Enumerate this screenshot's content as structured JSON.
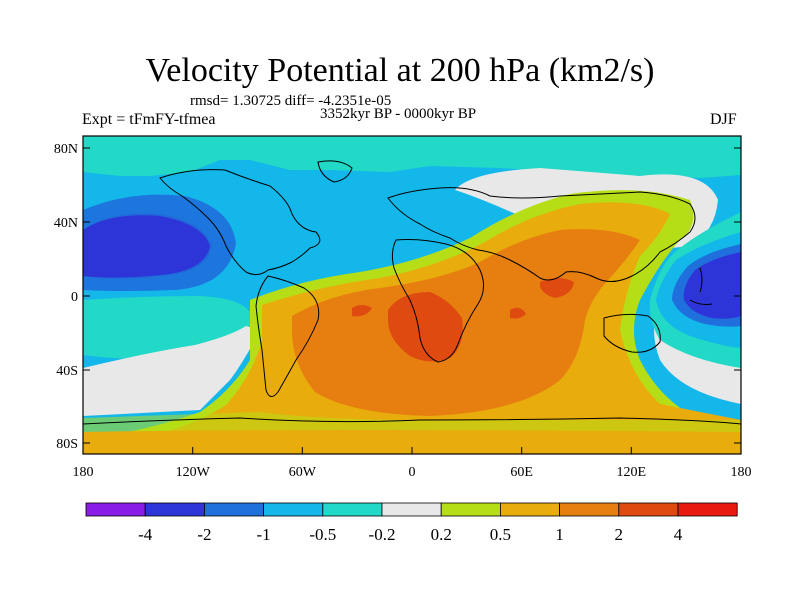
{
  "title": "Velocity Potential at 200 hPa (km2/s)",
  "stats": "rmsd= 1.30725 diff= -4.2351e-05",
  "period": "3352kyr BP - 0000kyr BP",
  "experiment": "Expt = tFmFY-tfmea",
  "season": "DJF",
  "axes": {
    "y_labels": [
      "80N",
      "40N",
      "0",
      "40S",
      "80S"
    ],
    "x_labels": [
      "180",
      "120W",
      "60W",
      "0",
      "60E",
      "120E",
      "180"
    ]
  },
  "colorbar": {
    "colors": [
      "#8a1ce8",
      "#2d35d8",
      "#1f6fdc",
      "#13b7ea",
      "#22d8c6",
      "#e8e8e8",
      "#b6de16",
      "#e8ac0c",
      "#e67e10",
      "#de4a10",
      "#e81a10"
    ],
    "labels": [
      "-4",
      "-2",
      "-1",
      "-0.5",
      "-0.2",
      "0.2",
      "0.5",
      "1",
      "2",
      "4"
    ]
  }
}
